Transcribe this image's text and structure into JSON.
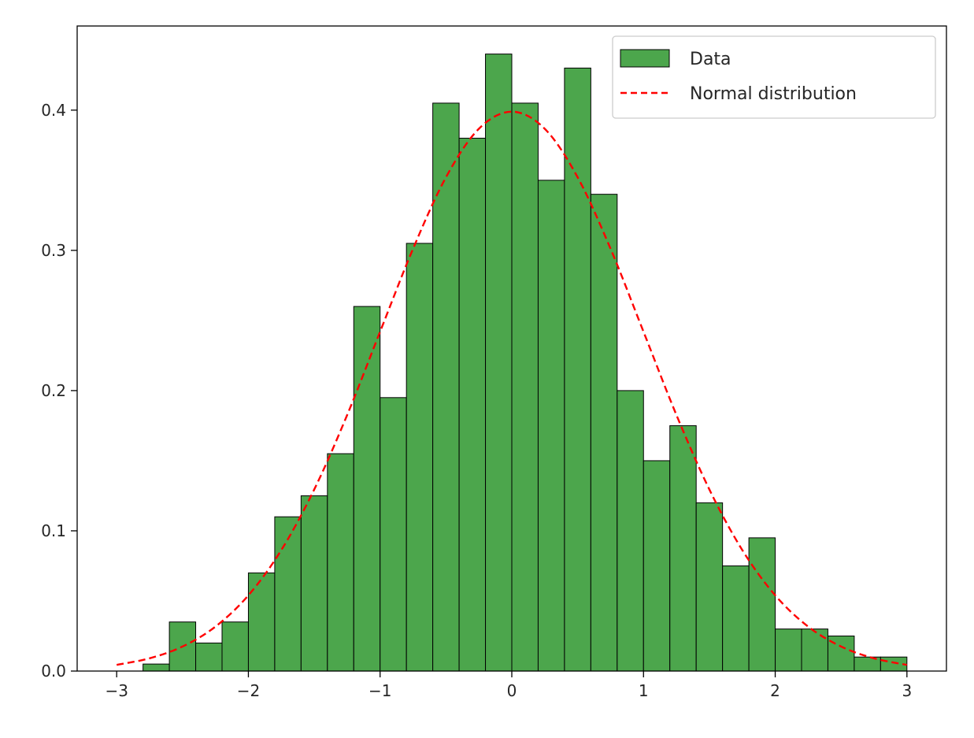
{
  "chart_data": {
    "type": "bar",
    "title": "",
    "xlabel": "",
    "ylabel": "",
    "xlim": [
      -3.3,
      3.3
    ],
    "ylim": [
      0,
      0.46
    ],
    "x_ticks": [
      -3,
      -2,
      -1,
      0,
      1,
      2,
      3
    ],
    "x_tick_labels": [
      "−3",
      "−2",
      "−1",
      "0",
      "1",
      "2",
      "3"
    ],
    "y_ticks": [
      0.0,
      0.1,
      0.2,
      0.3,
      0.4
    ],
    "y_tick_labels": [
      "0.0",
      "0.1",
      "0.2",
      "0.3",
      "0.4"
    ],
    "grid": false,
    "legend_position": "top-right",
    "series": [
      {
        "name": "Data",
        "kind": "histogram",
        "color": "#4ca64c",
        "edge_color": "#000000",
        "bin_edges": [
          -3.0,
          -2.8,
          -2.6,
          -2.4,
          -2.2,
          -2.0,
          -1.8,
          -1.6,
          -1.4,
          -1.2,
          -1.0,
          -0.8,
          -0.6,
          -0.4,
          -0.2,
          0.0,
          0.2,
          0.4,
          0.6,
          0.8,
          1.0,
          1.2,
          1.4,
          1.6,
          1.8,
          2.0,
          2.2,
          2.4,
          2.6,
          2.8,
          3.0
        ],
        "values": [
          0.0,
          0.005,
          0.035,
          0.02,
          0.035,
          0.07,
          0.11,
          0.125,
          0.155,
          0.26,
          0.195,
          0.305,
          0.405,
          0.38,
          0.44,
          0.405,
          0.35,
          0.43,
          0.34,
          0.2,
          0.15,
          0.175,
          0.12,
          0.075,
          0.095,
          0.03,
          0.03,
          0.025,
          0.01,
          0.01
        ]
      },
      {
        "name": "Normal distribution",
        "kind": "line",
        "color": "#ff0000",
        "line_style": "dashed",
        "x": [
          -3.0,
          -2.75,
          -2.5,
          -2.25,
          -2.0,
          -1.75,
          -1.5,
          -1.25,
          -1.0,
          -0.75,
          -0.5,
          -0.25,
          0.0,
          0.25,
          0.5,
          0.75,
          1.0,
          1.25,
          1.5,
          1.75,
          2.0,
          2.25,
          2.5,
          2.75,
          3.0
        ],
        "y": [
          0.0044,
          0.0091,
          0.0175,
          0.0317,
          0.054,
          0.0863,
          0.1295,
          0.1826,
          0.242,
          0.3011,
          0.3521,
          0.3867,
          0.3989,
          0.3867,
          0.3521,
          0.3011,
          0.242,
          0.1826,
          0.1295,
          0.0863,
          0.054,
          0.0317,
          0.0175,
          0.0091,
          0.0044
        ]
      }
    ]
  }
}
